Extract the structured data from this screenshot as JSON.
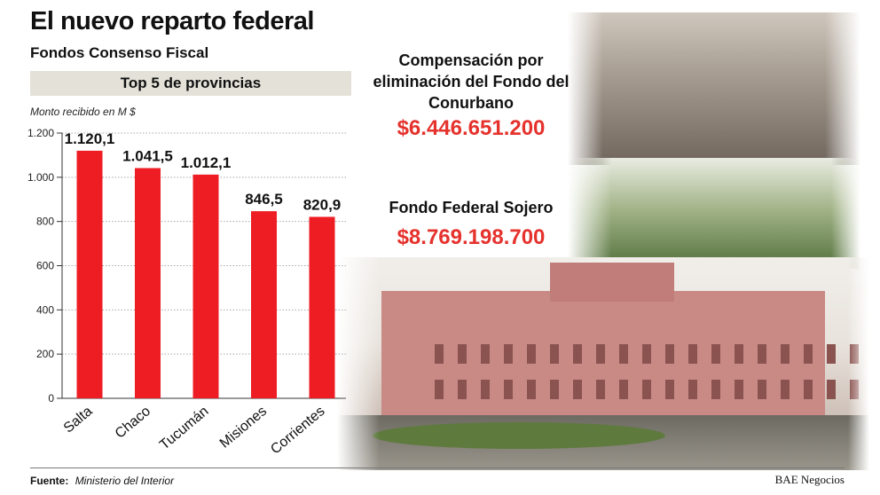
{
  "header": {
    "title": "El nuevo reparto federal",
    "subtitle": "Fondos Consenso Fiscal",
    "band": "Top 5 de provincias"
  },
  "chart_data": {
    "type": "bar",
    "ylabel": "Monto recibido en M $",
    "categories": [
      "Salta",
      "Chaco",
      "Tucumán",
      "Misiones",
      "Corrientes"
    ],
    "values": [
      1120.1,
      1041.5,
      1012.1,
      846.5,
      820.9
    ],
    "value_labels": [
      "1.120,1",
      "1.041,5",
      "1.012,1",
      "846,5",
      "820,9"
    ],
    "yticks": [
      0,
      200,
      400,
      600,
      800,
      1000,
      1200
    ],
    "ytick_labels": [
      "0",
      "200",
      "400",
      "600",
      "800",
      "1.000",
      "1.200"
    ],
    "ylim": [
      0,
      1200
    ],
    "grid": true,
    "bar_color": "#ee1d23"
  },
  "compensacion": {
    "title": "Compensación por eliminación del Fondo del Conurbano",
    "amount": "$6.446.651.200"
  },
  "sojero": {
    "title": "Fondo Federal Sojero",
    "amount": "$8.769.198.700"
  },
  "footer": {
    "source_label": "Fuente:",
    "source_value": "Ministerio del Interior",
    "credit": "BAE Negocios"
  },
  "colors": {
    "accent_red": "#e5322d",
    "band_bg": "#e3e1d8"
  }
}
